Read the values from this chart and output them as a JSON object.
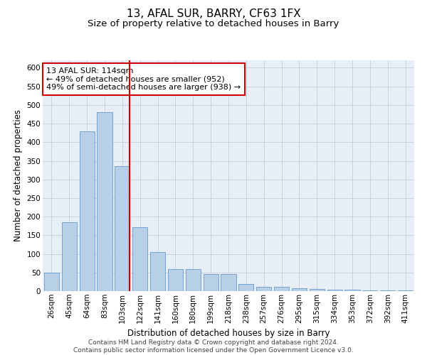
{
  "title": "13, AFAL SUR, BARRY, CF63 1FX",
  "subtitle": "Size of property relative to detached houses in Barry",
  "xlabel": "Distribution of detached houses by size in Barry",
  "ylabel": "Number of detached properties",
  "categories": [
    "26sqm",
    "45sqm",
    "64sqm",
    "83sqm",
    "103sqm",
    "122sqm",
    "141sqm",
    "160sqm",
    "180sqm",
    "199sqm",
    "218sqm",
    "238sqm",
    "257sqm",
    "276sqm",
    "295sqm",
    "315sqm",
    "334sqm",
    "353sqm",
    "372sqm",
    "392sqm",
    "411sqm"
  ],
  "values": [
    50,
    185,
    430,
    480,
    335,
    172,
    105,
    60,
    60,
    45,
    45,
    20,
    12,
    12,
    7,
    6,
    3,
    3,
    2,
    2,
    2
  ],
  "bar_color": "#b8cfe8",
  "bar_edge_color": "#6699cc",
  "grid_color": "#c8d4e4",
  "background_color": "#e8eef6",
  "vline_x_index": 4,
  "vline_color": "#cc0000",
  "annotation_text": "13 AFAL SUR: 114sqm\n← 49% of detached houses are smaller (952)\n49% of semi-detached houses are larger (938) →",
  "annotation_box_color": "#ffffff",
  "annotation_box_edge": "#cc0000",
  "ylim": [
    0,
    620
  ],
  "yticks": [
    0,
    50,
    100,
    150,
    200,
    250,
    300,
    350,
    400,
    450,
    500,
    550,
    600
  ],
  "footer": "Contains HM Land Registry data © Crown copyright and database right 2024.\nContains public sector information licensed under the Open Government Licence v3.0.",
  "title_fontsize": 11,
  "subtitle_fontsize": 9.5,
  "axis_label_fontsize": 8.5,
  "tick_fontsize": 7.5,
  "annotation_fontsize": 8,
  "footer_fontsize": 6.5
}
